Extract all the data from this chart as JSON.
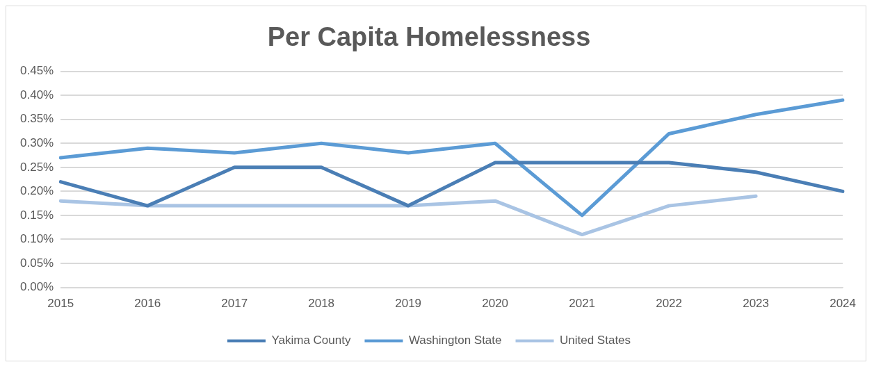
{
  "chart_data": {
    "type": "line",
    "title": "Per Capita Homelessness",
    "categories": [
      "2015",
      "2016",
      "2017",
      "2018",
      "2019",
      "2020",
      "2021",
      "2022",
      "2023",
      "2024"
    ],
    "series": [
      {
        "name": "Yakima County",
        "color": "#4a7eb5",
        "values": [
          0.22,
          0.17,
          0.25,
          0.25,
          0.17,
          0.26,
          0.26,
          0.26,
          0.24,
          0.2
        ]
      },
      {
        "name": "Washington State",
        "color": "#5b9bd5",
        "values": [
          0.27,
          0.29,
          0.28,
          0.3,
          0.28,
          0.3,
          0.15,
          0.32,
          0.36,
          0.39
        ]
      },
      {
        "name": "United States",
        "color": "#a9c4e4",
        "values": [
          0.18,
          0.17,
          0.17,
          0.17,
          0.17,
          0.18,
          0.11,
          0.17,
          0.19,
          null
        ]
      }
    ],
    "ylim": [
      0,
      0.45
    ],
    "yticks": [
      {
        "value": 0,
        "label": "0.00%"
      },
      {
        "value": 0.05,
        "label": "0.05%"
      },
      {
        "value": 0.1,
        "label": "0.10%"
      },
      {
        "value": 0.15,
        "label": "0.15%"
      },
      {
        "value": 0.2,
        "label": "0.20%"
      },
      {
        "value": 0.25,
        "label": "0.25%"
      },
      {
        "value": 0.3,
        "label": "0.30%"
      },
      {
        "value": 0.35,
        "label": "0.35%"
      },
      {
        "value": 0.4,
        "label": "0.40%"
      },
      {
        "value": 0.45,
        "label": "0.45%"
      }
    ],
    "grid": "y",
    "legend": "bottom",
    "marker": "none",
    "line_style": "solid"
  }
}
